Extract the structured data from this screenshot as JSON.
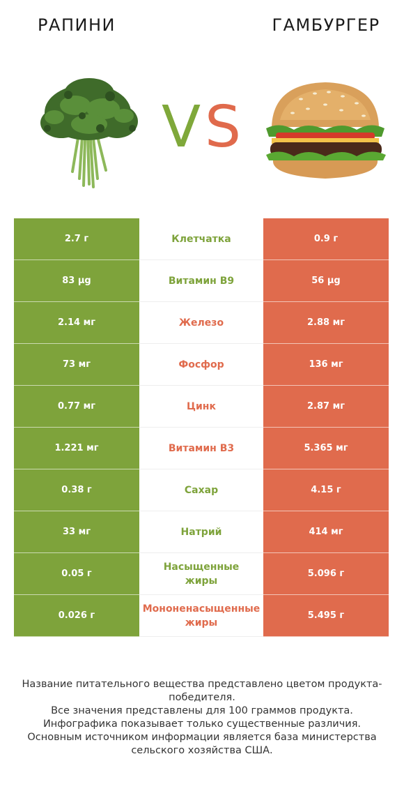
{
  "header": {
    "left_food": "РАПИНИ",
    "right_food": "ГАМБУРГЕР",
    "vs_v": "V",
    "vs_s": "S"
  },
  "colors": {
    "left_winner": "#7ea33b",
    "right_winner": "#e06b4d"
  },
  "icons": {
    "left_image": "rapini-broccoli-rabe-image",
    "right_image": "hamburger-image"
  },
  "chart_data": {
    "type": "table",
    "columns": [
      "РАПИНИ",
      "",
      "ГАМБУРГЕР"
    ],
    "rows": [
      {
        "nutrient": "Клетчатка",
        "left": "2.7 г",
        "right": "0.9 г",
        "winner": "left"
      },
      {
        "nutrient": "Витамин B9",
        "left": "83 µg",
        "right": "56 µg",
        "winner": "left"
      },
      {
        "nutrient": "Железо",
        "left": "2.14 мг",
        "right": "2.88 мг",
        "winner": "right"
      },
      {
        "nutrient": "Фосфор",
        "left": "73 мг",
        "right": "136 мг",
        "winner": "right"
      },
      {
        "nutrient": "Цинк",
        "left": "0.77 мг",
        "right": "2.87 мг",
        "winner": "right"
      },
      {
        "nutrient": "Витамин B3",
        "left": "1.221 мг",
        "right": "5.365 мг",
        "winner": "right"
      },
      {
        "nutrient": "Сахар",
        "left": "0.38 г",
        "right": "4.15 г",
        "winner": "left"
      },
      {
        "nutrient": "Натрий",
        "left": "33 мг",
        "right": "414 мг",
        "winner": "left"
      },
      {
        "nutrient": "Насыщенные\nжиры",
        "left": "0.05 г",
        "right": "5.096 г",
        "winner": "left"
      },
      {
        "nutrient": "Мононенасыщенные\nжиры",
        "left": "0.026 г",
        "right": "5.495 г",
        "winner": "right"
      }
    ]
  },
  "footer": {
    "lines": [
      "Название питательного вещества представлено цветом продукта-победителя.",
      "Все значения представлены для 100 граммов продукта.",
      "Инфографика показывает только существенные различия.",
      "Основным источником информации является база министерства сельского хозяйства США."
    ]
  }
}
